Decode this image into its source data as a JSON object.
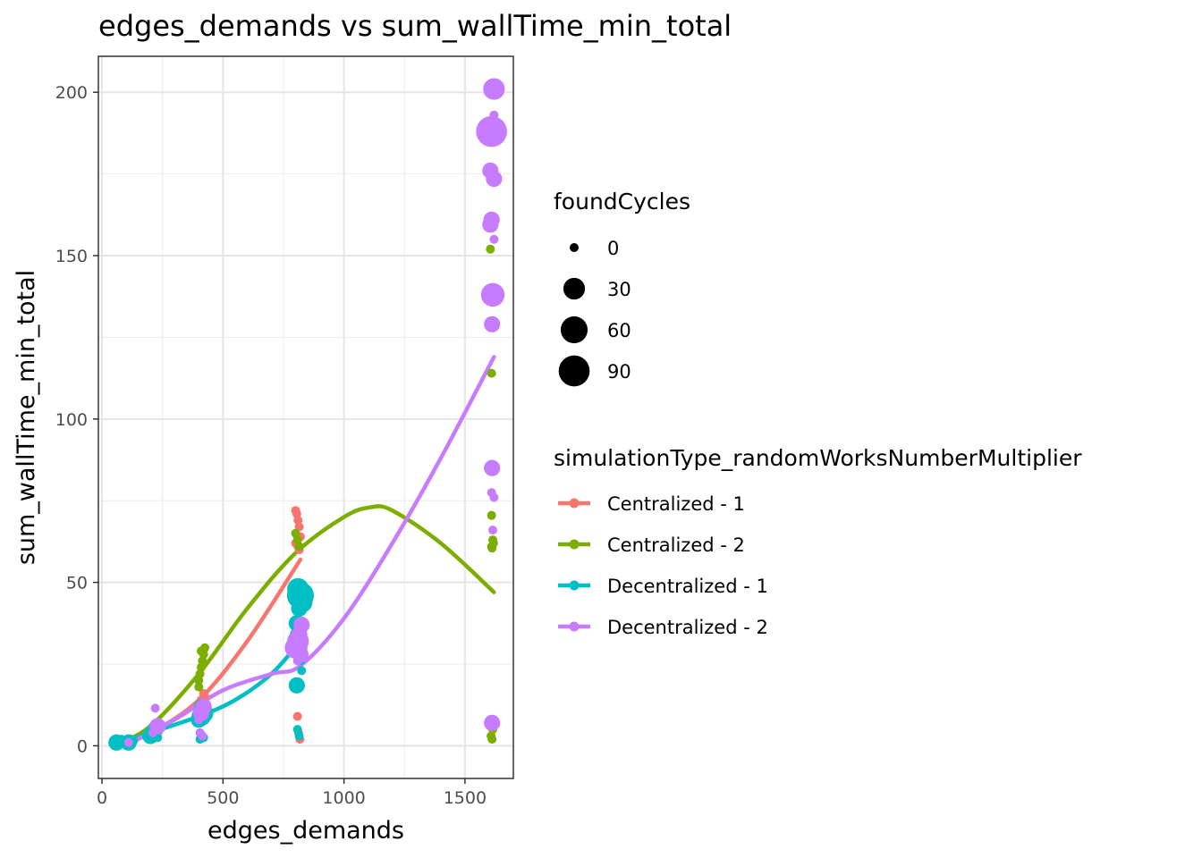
{
  "chart_data": {
    "type": "scatter",
    "title": "edges_demands  vs  sum_wallTime_min_total",
    "xlabel": "edges_demands",
    "ylabel": "sum_wallTime_min_total",
    "xlim": [
      -15,
      1700
    ],
    "ylim": [
      -10,
      211
    ],
    "xticks": [
      0,
      500,
      1000,
      1500
    ],
    "yticks": [
      0,
      50,
      100,
      150,
      200
    ],
    "grid": true,
    "legend_position": "right",
    "size_legend": {
      "title": "foundCycles",
      "entries": [
        {
          "label": "0",
          "value": 0
        },
        {
          "label": "30",
          "value": 30
        },
        {
          "label": "60",
          "value": 60
        },
        {
          "label": "90",
          "value": 90
        }
      ]
    },
    "color_legend_title": "simulationType_randomWorksNumberMultiplier",
    "series": [
      {
        "name": "Centralized - 1",
        "color": "#F8766D",
        "points": [
          [
            60,
            0.5,
            0
          ],
          [
            80,
            1,
            0
          ],
          [
            110,
            1.5,
            0
          ],
          [
            200,
            3,
            0
          ],
          [
            210,
            5,
            0
          ],
          [
            220,
            6,
            0
          ],
          [
            400,
            12,
            0
          ],
          [
            410,
            14,
            0
          ],
          [
            420,
            16,
            0
          ],
          [
            405,
            10,
            0
          ],
          [
            415,
            8,
            0
          ],
          [
            425,
            15,
            0
          ],
          [
            800,
            72,
            0
          ],
          [
            805,
            71,
            0
          ],
          [
            810,
            69,
            0
          ],
          [
            815,
            67,
            0
          ],
          [
            820,
            64,
            0
          ],
          [
            800,
            62,
            0
          ],
          [
            810,
            61,
            0
          ],
          [
            815,
            60,
            0
          ],
          [
            808,
            9,
            0
          ],
          [
            812,
            4,
            0
          ],
          [
            818,
            2,
            0
          ]
        ],
        "trend": [
          [
            60,
            0.5
          ],
          [
            200,
            4
          ],
          [
            400,
            14
          ],
          [
            600,
            32
          ],
          [
            820,
            57
          ]
        ]
      },
      {
        "name": "Centralized - 2",
        "color": "#7CAE00",
        "points": [
          [
            60,
            0.5,
            0
          ],
          [
            100,
            1,
            0
          ],
          [
            200,
            4,
            0
          ],
          [
            215,
            5,
            0
          ],
          [
            400,
            20,
            0
          ],
          [
            405,
            22,
            0
          ],
          [
            410,
            24,
            0
          ],
          [
            415,
            26,
            0
          ],
          [
            420,
            28,
            0
          ],
          [
            425,
            30,
            0
          ],
          [
            410,
            29,
            0
          ],
          [
            400,
            18,
            0
          ],
          [
            800,
            65,
            0
          ],
          [
            808,
            63,
            0
          ],
          [
            815,
            61,
            0
          ],
          [
            1605,
            152,
            0
          ],
          [
            1610,
            114,
            0
          ],
          [
            1610,
            70.5,
            0
          ],
          [
            1615,
            63,
            0
          ],
          [
            1618,
            62,
            0
          ],
          [
            1610,
            61,
            0
          ],
          [
            1612,
            60.5,
            0
          ],
          [
            1620,
            7,
            0
          ],
          [
            1615,
            5,
            0
          ],
          [
            1608,
            3,
            0
          ],
          [
            1612,
            2,
            0
          ]
        ],
        "trend": [
          [
            60,
            0.5
          ],
          [
            200,
            6
          ],
          [
            400,
            22
          ],
          [
            600,
            42
          ],
          [
            800,
            59
          ],
          [
            1000,
            70
          ],
          [
            1110,
            73
          ],
          [
            1200,
            72
          ],
          [
            1400,
            62
          ],
          [
            1620,
            47
          ]
        ]
      },
      {
        "name": "Decentralized - 1",
        "color": "#00BFC4",
        "points": [
          [
            55,
            0.5,
            0
          ],
          [
            60,
            1,
            10
          ],
          [
            70,
            0.5,
            0
          ],
          [
            80,
            2,
            0
          ],
          [
            110,
            1,
            10
          ],
          [
            120,
            2,
            0
          ],
          [
            130,
            1.5,
            0
          ],
          [
            200,
            3,
            10
          ],
          [
            210,
            4,
            0
          ],
          [
            220,
            5,
            10
          ],
          [
            230,
            2.5,
            0
          ],
          [
            400,
            8,
            10
          ],
          [
            410,
            9,
            20
          ],
          [
            420,
            10,
            20
          ],
          [
            415,
            12,
            10
          ],
          [
            405,
            2,
            0
          ],
          [
            420,
            2.5,
            0
          ],
          [
            810,
            48,
            30
          ],
          [
            820,
            46,
            60
          ],
          [
            825,
            44,
            30
          ],
          [
            815,
            42,
            10
          ],
          [
            805,
            37.5,
            10
          ],
          [
            810,
            34,
            10
          ],
          [
            815,
            30,
            10
          ],
          [
            820,
            26,
            0
          ],
          [
            825,
            23,
            0
          ],
          [
            805,
            18.5,
            10
          ],
          [
            810,
            19.5,
            0
          ],
          [
            808,
            5,
            0
          ],
          [
            815,
            3,
            0
          ]
        ],
        "trend": [
          [
            55,
            0.5
          ],
          [
            200,
            4
          ],
          [
            400,
            9
          ],
          [
            550,
            14
          ],
          [
            700,
            22
          ],
          [
            820,
            32
          ]
        ]
      },
      {
        "name": "Decentralized - 2",
        "color": "#C77CFF",
        "points": [
          [
            110,
            1,
            0
          ],
          [
            220,
            11.5,
            0
          ],
          [
            210,
            4,
            0
          ],
          [
            230,
            6,
            10
          ],
          [
            400,
            8,
            0
          ],
          [
            410,
            10,
            10
          ],
          [
            420,
            12,
            10
          ],
          [
            405,
            4,
            0
          ],
          [
            415,
            3,
            0
          ],
          [
            800,
            30,
            30
          ],
          [
            810,
            32,
            30
          ],
          [
            820,
            28,
            10
          ],
          [
            825,
            37,
            10
          ],
          [
            815,
            34,
            10
          ],
          [
            808,
            26,
            0
          ],
          [
            1620,
            201,
            30
          ],
          [
            1620,
            193,
            0
          ],
          [
            1615,
            190,
            0
          ],
          [
            1610,
            188,
            90
          ],
          [
            1605,
            176,
            10
          ],
          [
            1620,
            173.5,
            10
          ],
          [
            1610,
            161,
            10
          ],
          [
            1605,
            159.5,
            10
          ],
          [
            1620,
            155,
            0
          ],
          [
            1615,
            138,
            40
          ],
          [
            1612,
            129,
            10
          ],
          [
            1612,
            85,
            10
          ],
          [
            1610,
            77.5,
            0
          ],
          [
            1620,
            76,
            0
          ],
          [
            1615,
            66,
            0
          ],
          [
            1612,
            7,
            10
          ]
        ],
        "trend": [
          [
            110,
            0.5
          ],
          [
            300,
            8
          ],
          [
            500,
            17
          ],
          [
            700,
            22
          ],
          [
            820,
            24.5
          ],
          [
            1000,
            39
          ],
          [
            1200,
            62
          ],
          [
            1400,
            88
          ],
          [
            1620,
            119
          ]
        ]
      }
    ]
  }
}
